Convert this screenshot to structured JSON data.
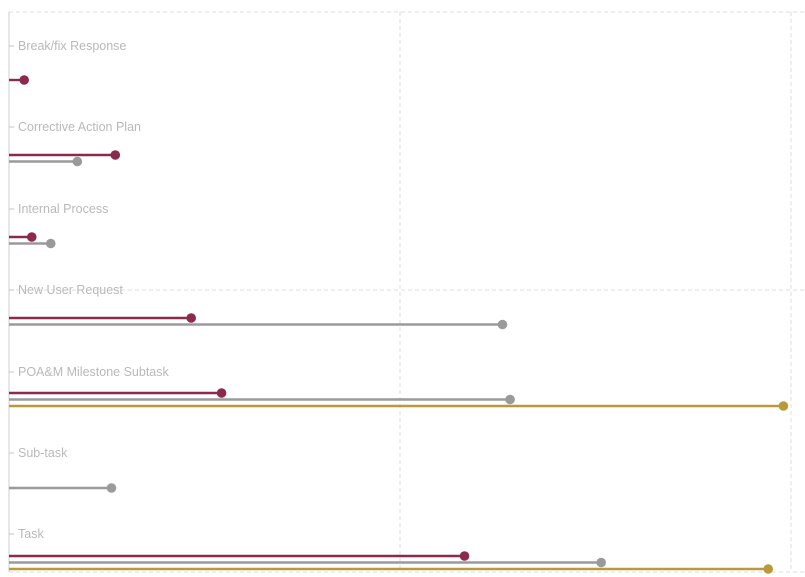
{
  "chart_data": {
    "type": "lollipop",
    "orientation": "horizontal",
    "categories": [
      "Break/fix Response",
      "Corrective Action Plan",
      "Internal Process",
      "New User Request",
      "POA&M Milestone Subtask",
      "Sub-task",
      "Task"
    ],
    "series": [
      {
        "color": "#8b2a4a",
        "values": [
          0.2,
          1.4,
          0.3,
          2.4,
          2.8,
          null,
          6.0
        ]
      },
      {
        "color": "#9a9a9a",
        "values": [
          null,
          0.9,
          0.55,
          6.5,
          6.6,
          1.35,
          7.8
        ]
      },
      {
        "color": "#b89a3a",
        "values": [
          null,
          null,
          null,
          null,
          10.2,
          null,
          10.0
        ]
      }
    ],
    "xlim": [
      0,
      10.3
    ],
    "grid": true
  }
}
